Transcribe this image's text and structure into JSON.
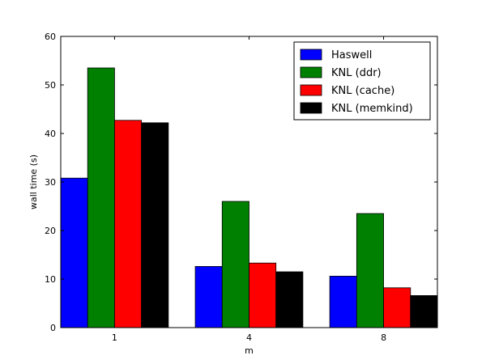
{
  "chart_data": {
    "type": "bar",
    "title": "",
    "xlabel": "m",
    "ylabel": "wall time (s)",
    "categories": [
      "1",
      "4",
      "8"
    ],
    "ylim": [
      0,
      60
    ],
    "yticks": [
      0,
      10,
      20,
      30,
      40,
      50,
      60
    ],
    "grid": false,
    "legend_position": "top-right",
    "series": [
      {
        "name": "Haswell",
        "color": "#0000ff",
        "values": [
          30.8,
          12.6,
          10.6
        ]
      },
      {
        "name": "KNL (ddr)",
        "color": "#008000",
        "values": [
          53.5,
          26.0,
          23.5
        ]
      },
      {
        "name": "KNL (cache)",
        "color": "#ff0000",
        "values": [
          42.7,
          13.3,
          8.2
        ]
      },
      {
        "name": "KNL (memkind)",
        "color": "#000000",
        "values": [
          42.2,
          11.5,
          6.6
        ]
      }
    ]
  }
}
